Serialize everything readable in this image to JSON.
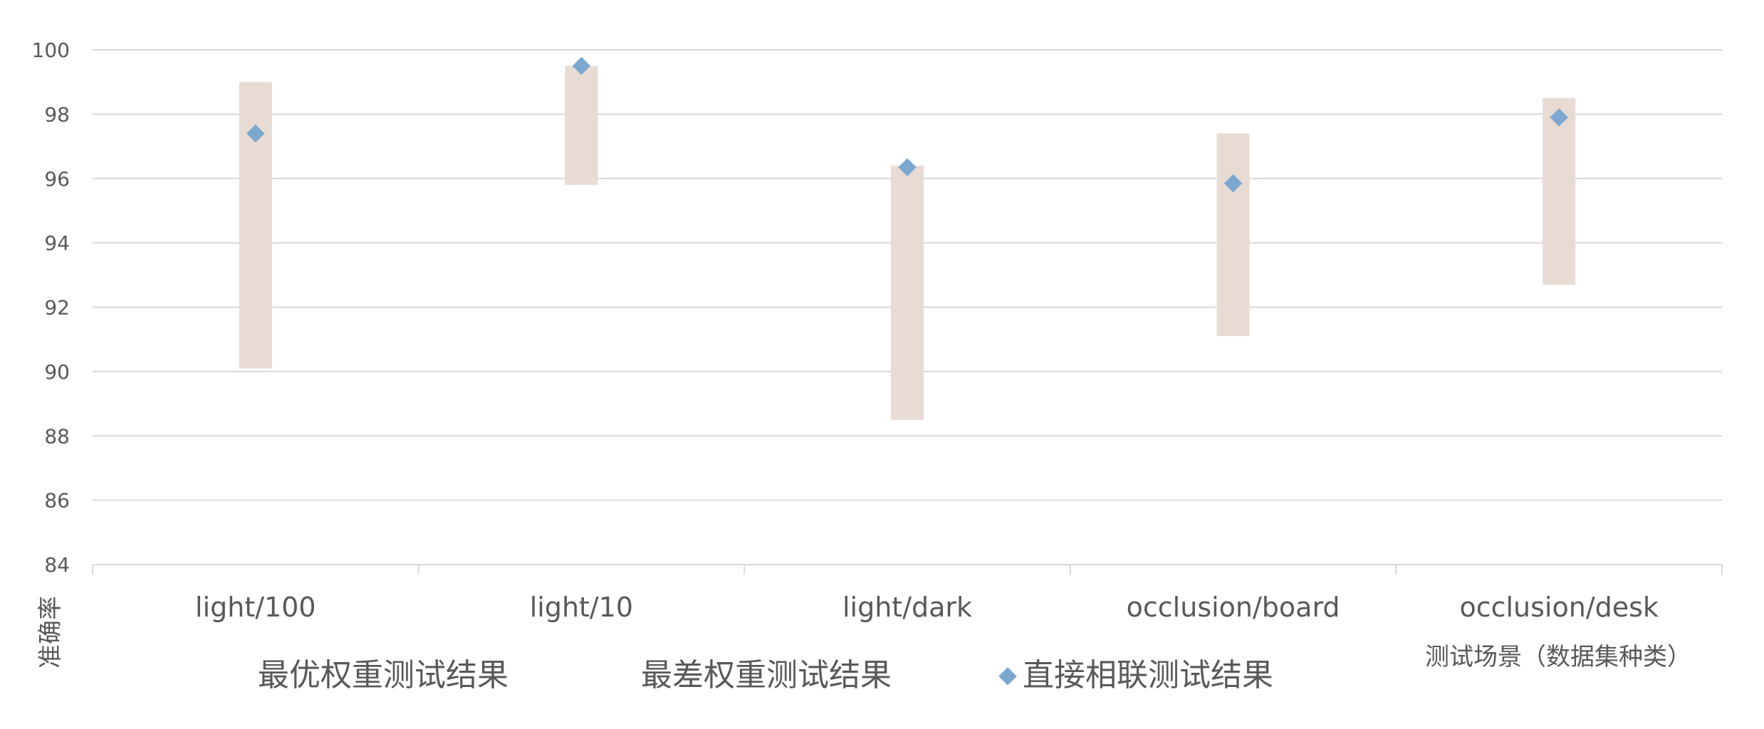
{
  "chart_data": {
    "type": "range-bar-with-markers",
    "ylabel": "准确率",
    "xlabel": "测试场景（数据集种类）",
    "ylim": [
      84,
      100
    ],
    "yticks": [
      "100",
      "98",
      "96",
      "94",
      "92",
      "90",
      "88",
      "86",
      "84"
    ],
    "categories": [
      "light/100",
      "light/10",
      "light/dark",
      "occlusion/board",
      "occlusion/desk"
    ],
    "series": [
      {
        "name": "最优权重测试结果",
        "values": [
          99.0,
          99.5,
          96.4,
          97.4,
          98.5
        ]
      },
      {
        "name": "最差权重测试结果",
        "values": [
          90.1,
          95.8,
          88.5,
          91.1,
          92.7
        ]
      },
      {
        "name": "直接相联测试结果",
        "values": [
          97.4,
          99.5,
          96.35,
          95.85,
          97.9
        ]
      }
    ],
    "legend": {
      "position": "bottom",
      "items": [
        "最优权重测试结果",
        "最差权重测试结果",
        "直接相联测试结果"
      ]
    },
    "colors": {
      "range_bar": "#e8dbd3",
      "marker": "#7ba7d0",
      "grid": "#d9d9d9",
      "text": "#595959"
    },
    "grid": true
  }
}
